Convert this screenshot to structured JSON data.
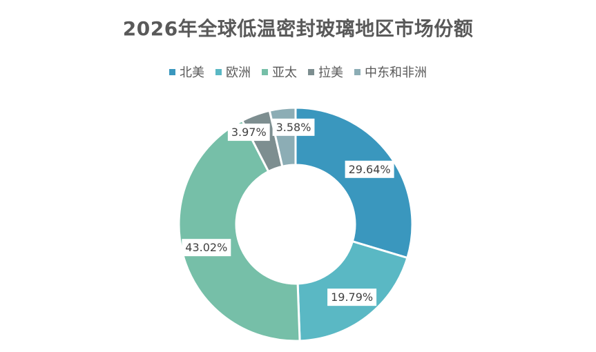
{
  "chart_data": {
    "type": "pie",
    "variant": "donut",
    "title": "2026年全球低温密封玻璃地区市场份额",
    "categories": [
      "北美",
      "欧洲",
      "亚太",
      "拉美",
      "中东和非洲"
    ],
    "values": [
      29.64,
      19.79,
      43.02,
      3.97,
      3.58
    ],
    "value_labels": [
      "29.64%",
      "19.79%",
      "43.02%",
      "3.97%",
      "3.58%"
    ],
    "colors": [
      "#3A97BE",
      "#5AB8C4",
      "#76BFA8",
      "#7D8E90",
      "#8CADB5"
    ],
    "legend_position": "top",
    "unit": "%"
  }
}
